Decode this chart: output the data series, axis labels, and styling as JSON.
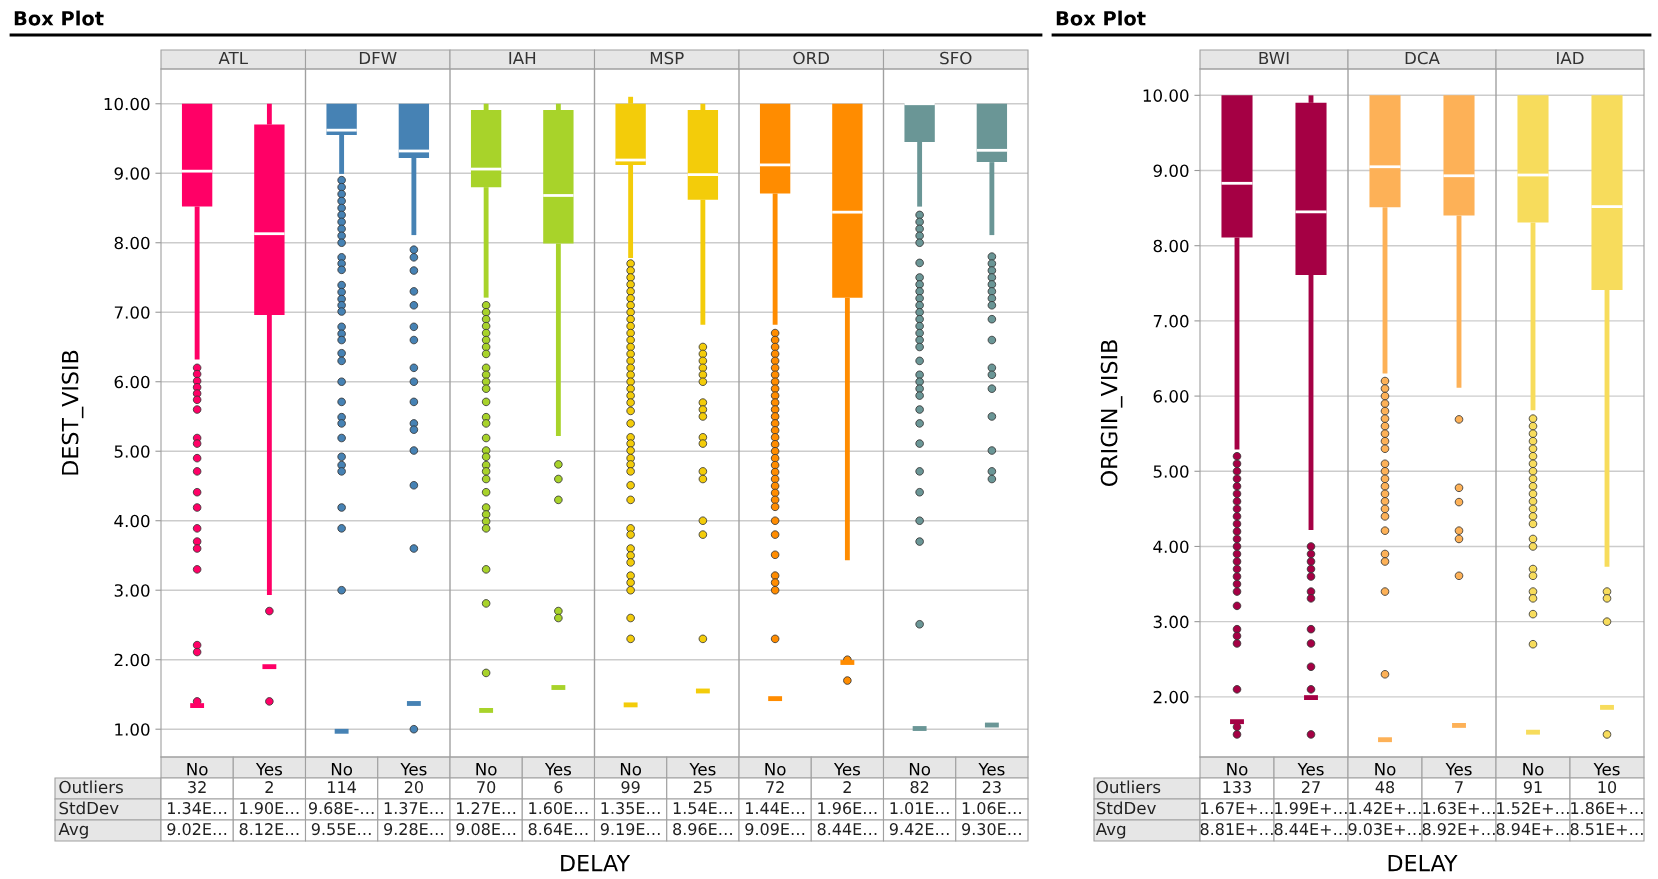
{
  "chart_data": [
    {
      "type": "box",
      "title": "Box Plot",
      "xlabel": "DELAY",
      "ylabel": "DEST_VISIB",
      "grid": "y",
      "categories": [
        "No",
        "Yes",
        "No",
        "Yes",
        "No",
        "Yes",
        "No",
        "Yes",
        "No",
        "Yes",
        "No",
        "Yes"
      ],
      "ylim": [
        0.6,
        10.5
      ],
      "yticks": [
        {
          "value": 1,
          "label": "1.00"
        },
        {
          "value": 2,
          "label": "2.00"
        },
        {
          "value": 3,
          "label": "3.00"
        },
        {
          "value": 4,
          "label": "4.00"
        },
        {
          "value": 5,
          "label": "5.00"
        },
        {
          "value": 6,
          "label": "6.00"
        },
        {
          "value": 7,
          "label": "7.00"
        },
        {
          "value": 8,
          "label": "8.00"
        },
        {
          "value": 9,
          "label": "9.00"
        },
        {
          "value": 10,
          "label": "10.00"
        }
      ],
      "series": [
        {
          "name": "ATL",
          "color": "#ff0066",
          "boxes": [
            {
              "low": 6.32,
              "q1": 8.52,
              "median": 9.03,
              "q3": 10,
              "high": 10,
              "outliers": [
                6.2,
                6.11,
                6.01,
                5.92,
                5.83,
                5.74,
                5.6,
                5.19,
                5.11,
                4.9,
                4.71,
                4.41,
                4.19,
                3.89,
                3.7,
                3.6,
                3.3,
                2.21,
                2.11,
                1.4
              ]
            },
            {
              "low": 2.93,
              "q1": 6.96,
              "median": 8.13,
              "q3": 9.7,
              "high": 10,
              "outliers": [
                2.7,
                1.4
              ]
            },
            null,
            null,
            null,
            null,
            null,
            null,
            null,
            null,
            null,
            null
          ]
        },
        {
          "name": "DFW",
          "color": "#4682b4",
          "boxes": [
            null,
            null,
            {
              "low": 8.99,
              "q1": 9.55,
              "median": 9.62,
              "q3": 10,
              "high": 10,
              "outliers": [
                8.9,
                8.8,
                8.7,
                8.6,
                8.5,
                8.4,
                8.3,
                8.2,
                8.1,
                8.0,
                7.79,
                7.7,
                7.61,
                7.39,
                7.29,
                7.19,
                7.1,
                7.01,
                6.79,
                6.69,
                6.6,
                6.41,
                6.3,
                6.0,
                5.71,
                5.49,
                5.4,
                5.19,
                4.92,
                4.8,
                4.71,
                4.19,
                3.89,
                3.0
              ]
            },
            {
              "low": 8.11,
              "q1": 9.22,
              "median": 9.32,
              "q3": 10,
              "high": 10,
              "outliers": [
                7.9,
                7.79,
                7.6,
                7.3,
                7.1,
                6.79,
                6.6,
                6.2,
                6.0,
                5.71,
                5.4,
                5.31,
                5.01,
                4.51,
                3.6,
                1.0
              ]
            },
            null,
            null,
            null,
            null,
            null,
            null,
            null,
            null
          ]
        },
        {
          "name": "IAH",
          "color": "#a8d32a",
          "boxes": [
            null,
            null,
            null,
            null,
            {
              "low": 7.21,
              "q1": 8.8,
              "median": 9.06,
              "q3": 9.91,
              "high": 10,
              "outliers": [
                7.1,
                7.0,
                6.9,
                6.8,
                6.7,
                6.6,
                6.5,
                6.4,
                6.2,
                6.1,
                6.0,
                5.9,
                5.71,
                5.49,
                5.4,
                5.19,
                5.01,
                4.92,
                4.8,
                4.71,
                4.6,
                4.41,
                4.19,
                4.09,
                3.99,
                3.89,
                3.3,
                2.81,
                1.81
              ]
            },
            {
              "low": 5.22,
              "q1": 7.99,
              "median": 8.68,
              "q3": 9.91,
              "high": 10,
              "outliers": [
                4.81,
                4.6,
                4.3,
                2.7,
                2.6
              ]
            },
            null,
            null,
            null,
            null,
            null,
            null
          ]
        },
        {
          "name": "MSP",
          "color": "#f3cc0a",
          "boxes": [
            null,
            null,
            null,
            null,
            null,
            null,
            {
              "low": 7.78,
              "q1": 9.12,
              "median": 9.19,
              "q3": 10,
              "high": 10.1,
              "outliers": [
                7.7,
                7.6,
                7.5,
                7.4,
                7.3,
                7.2,
                7.1,
                7.0,
                6.9,
                6.8,
                6.7,
                6.6,
                6.5,
                6.4,
                6.3,
                6.2,
                6.1,
                6.0,
                5.9,
                5.8,
                5.7,
                5.58,
                5.4,
                5.2,
                5.11,
                5.01,
                4.9,
                4.81,
                4.71,
                4.51,
                4.3,
                3.89,
                3.8,
                3.6,
                3.5,
                3.4,
                3.21,
                3.11,
                3.0,
                2.6,
                2.3
              ]
            },
            {
              "low": 6.82,
              "q1": 8.62,
              "median": 8.98,
              "q3": 9.91,
              "high": 10,
              "outliers": [
                6.5,
                6.4,
                6.3,
                6.2,
                6.1,
                6.0,
                5.7,
                5.6,
                5.5,
                5.2,
                5.11,
                4.71,
                4.6,
                4.0,
                3.8,
                2.3
              ]
            },
            null,
            null,
            null,
            null
          ]
        },
        {
          "name": "ORD",
          "color": "#ff8c00",
          "boxes": [
            null,
            null,
            null,
            null,
            null,
            null,
            null,
            null,
            {
              "low": 6.82,
              "q1": 8.71,
              "median": 9.12,
              "q3": 10,
              "high": 10,
              "outliers": [
                6.7,
                6.6,
                6.5,
                6.4,
                6.3,
                6.2,
                6.1,
                6.0,
                5.9,
                5.8,
                5.7,
                5.6,
                5.5,
                5.4,
                5.3,
                5.2,
                5.1,
                5.0,
                4.9,
                4.8,
                4.7,
                4.6,
                4.5,
                4.4,
                4.3,
                4.2,
                4.0,
                3.8,
                3.51,
                3.21,
                3.11,
                3.0,
                2.3
              ]
            },
            {
              "low": 3.43,
              "q1": 7.21,
              "median": 8.44,
              "q3": 10,
              "high": 10,
              "outliers": [
                2.0,
                1.7
              ]
            },
            null,
            null
          ]
        },
        {
          "name": "SFO",
          "color": "#6a9696",
          "boxes": [
            null,
            null,
            null,
            null,
            null,
            null,
            null,
            null,
            null,
            null,
            {
              "low": 8.52,
              "q1": 9.45,
              "median": 10,
              "q3": 10,
              "high": 10,
              "outliers": [
                8.4,
                8.3,
                8.2,
                8.1,
                8.0,
                7.71,
                7.5,
                7.4,
                7.3,
                7.2,
                7.1,
                7.0,
                6.9,
                6.8,
                6.7,
                6.6,
                6.5,
                6.3,
                6.1,
                6.0,
                5.9,
                5.8,
                5.6,
                5.4,
                5.11,
                4.71,
                4.41,
                4.0,
                3.7,
                2.51
              ]
            },
            {
              "low": 8.11,
              "q1": 9.16,
              "median": 9.33,
              "q3": 10,
              "high": 10,
              "outliers": [
                7.8,
                7.7,
                7.6,
                7.5,
                7.4,
                7.3,
                7.2,
                7.1,
                6.9,
                6.6,
                6.2,
                6.1,
                5.9,
                5.5,
                5.01,
                4.71,
                4.6
              ]
            }
          ]
        },
        {
          "type": "scatter",
          "color": "#ff0066",
          "values": [
            1.34,
            1.9,
            null,
            null,
            null,
            null,
            null,
            null,
            null,
            null,
            null,
            null
          ]
        },
        {
          "type": "scatter",
          "color": "#4682b4",
          "values": [
            null,
            null,
            0.97,
            1.37,
            null,
            null,
            null,
            null,
            null,
            null,
            null,
            null
          ]
        },
        {
          "type": "scatter",
          "color": "#a8d32a",
          "values": [
            null,
            null,
            null,
            null,
            1.27,
            1.6,
            null,
            null,
            null,
            null,
            null,
            null
          ]
        },
        {
          "type": "scatter",
          "color": "#f3cc0a",
          "values": [
            null,
            null,
            null,
            null,
            null,
            null,
            1.35,
            1.55,
            null,
            null,
            null,
            null
          ]
        },
        {
          "type": "scatter",
          "color": "#ff8c00",
          "values": [
            null,
            null,
            null,
            null,
            null,
            null,
            null,
            null,
            1.44,
            1.96,
            null,
            null
          ]
        },
        {
          "type": "scatter",
          "color": "#6a9696",
          "values": [
            null,
            null,
            null,
            null,
            null,
            null,
            null,
            null,
            null,
            null,
            1.01,
            1.06
          ]
        }
      ],
      "annotations": [
        "Outliers",
        "StdDev",
        "Avg",
        "32",
        "2",
        "114",
        "20",
        "70",
        "6",
        "99",
        "25",
        "72",
        "2",
        "82",
        "23",
        "1.34E…",
        "1.90E…",
        "9.68E-…",
        "1.37E…",
        "1.27E…",
        "1.60E…",
        "1.35E…",
        "1.54E…",
        "1.44E…",
        "1.96E…",
        "1.01E…",
        "1.06E…",
        "9.02E…",
        "8.12E…",
        "9.55E…",
        "9.28E…",
        "9.08E…",
        "8.64E…",
        "9.19E…",
        "8.96E…",
        "9.09E…",
        "8.44E…",
        "9.42E…",
        "9.30E…"
      ]
    },
    {
      "type": "box",
      "title": "Box Plot",
      "xlabel": "DELAY",
      "ylabel": "ORIGIN_VISIB",
      "grid": "y",
      "categories": [
        "No",
        "Yes",
        "No",
        "Yes",
        "No",
        "Yes"
      ],
      "ylim": [
        1.2,
        10.35
      ],
      "yticks": [
        {
          "value": 2,
          "label": "2.00"
        },
        {
          "value": 3,
          "label": "3.00"
        },
        {
          "value": 4,
          "label": "4.00"
        },
        {
          "value": 5,
          "label": "5.00"
        },
        {
          "value": 6,
          "label": "6.00"
        },
        {
          "value": 7,
          "label": "7.00"
        },
        {
          "value": 8,
          "label": "8.00"
        },
        {
          "value": 9,
          "label": "9.00"
        },
        {
          "value": 10,
          "label": "10.00"
        }
      ],
      "series": [
        {
          "name": "BWI",
          "color": "#a50044",
          "boxes": [
            {
              "low": 5.29,
              "q1": 8.11,
              "median": 8.83,
              "q3": 10,
              "high": 10,
              "outliers": [
                5.2,
                5.1,
                5.0,
                4.9,
                4.8,
                4.7,
                4.6,
                4.5,
                4.4,
                4.3,
                4.2,
                4.1,
                4.0,
                3.9,
                3.8,
                3.7,
                3.6,
                3.5,
                3.4,
                3.21,
                2.9,
                2.81,
                2.71,
                2.1,
                1.6,
                1.5
              ]
            },
            {
              "low": 4.22,
              "q1": 7.61,
              "median": 8.45,
              "q3": 9.9,
              "high": 10,
              "outliers": [
                4.0,
                3.9,
                3.8,
                3.7,
                3.6,
                3.4,
                3.31,
                2.9,
                2.71,
                2.4,
                2.1,
                1.5
              ]
            },
            null,
            null,
            null,
            null
          ]
        },
        {
          "name": "DCA",
          "color": "#fdb157",
          "boxes": [
            null,
            null,
            {
              "low": 6.3,
              "q1": 8.51,
              "median": 9.05,
              "q3": 10,
              "high": 10,
              "outliers": [
                6.2,
                6.1,
                6.0,
                5.9,
                5.8,
                5.7,
                5.6,
                5.5,
                5.4,
                5.3,
                5.1,
                5.0,
                4.9,
                4.8,
                4.7,
                4.6,
                4.5,
                4.4,
                4.21,
                3.9,
                3.8,
                3.4,
                2.3
              ]
            },
            {
              "low": 6.11,
              "q1": 8.4,
              "median": 8.93,
              "q3": 10,
              "high": 10,
              "outliers": [
                5.69,
                4.78,
                4.59,
                4.21,
                4.1,
                3.61
              ]
            },
            null,
            null
          ]
        },
        {
          "name": "IAD",
          "color": "#f7dc5c",
          "boxes": [
            null,
            null,
            null,
            null,
            {
              "low": 5.81,
              "q1": 8.31,
              "median": 8.94,
              "q3": 10,
              "high": 10,
              "outliers": [
                5.7,
                5.6,
                5.5,
                5.4,
                5.3,
                5.2,
                5.1,
                5.0,
                4.9,
                4.8,
                4.7,
                4.6,
                4.5,
                4.4,
                4.3,
                4.1,
                4.0,
                3.7,
                3.61,
                3.4,
                3.31,
                3.1,
                2.7
              ]
            },
            {
              "low": 3.73,
              "q1": 7.41,
              "median": 8.52,
              "q3": 10,
              "high": 10,
              "outliers": [
                3.4,
                3.31,
                3.0,
                1.5
              ]
            }
          ]
        },
        {
          "type": "scatter",
          "color": "#a50044",
          "values": [
            1.67,
            1.99,
            null,
            null,
            null,
            null
          ]
        },
        {
          "type": "scatter",
          "color": "#fdb157",
          "values": [
            null,
            null,
            1.43,
            1.62,
            null,
            null
          ]
        },
        {
          "type": "scatter",
          "color": "#f7dc5c",
          "values": [
            null,
            null,
            null,
            null,
            1.53,
            1.86
          ]
        }
      ],
      "annotations": [
        "Outliers",
        "StdDev",
        "Avg",
        "133",
        "27",
        "48",
        "7",
        "91",
        "10",
        "1.67E+…",
        "1.99E+…",
        "1.42E+…",
        "1.63E+…",
        "1.52E+…",
        "1.86E+…",
        "8.81E+…",
        "8.44E+…",
        "9.03E+…",
        "8.92E+…",
        "8.94E+…",
        "8.51E+…"
      ]
    }
  ]
}
